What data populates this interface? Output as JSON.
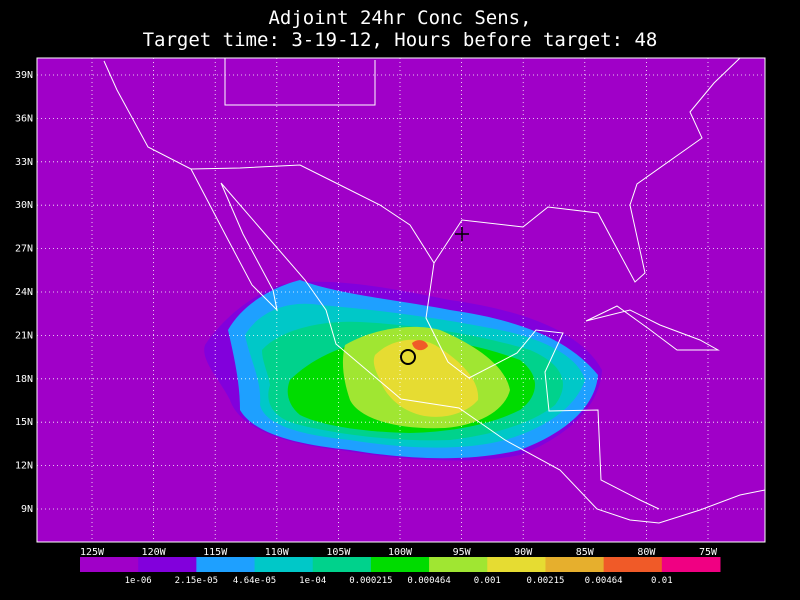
{
  "title": [
    "Adjoint 24hr Conc Sens,",
    "Target time: 3-19-12, Hours before target: 48"
  ],
  "map": {
    "lat_labels": [
      "39N",
      "36N",
      "33N",
      "30N",
      "27N",
      "24N",
      "21N",
      "18N",
      "15N",
      "12N",
      "9N"
    ],
    "lon_labels": [
      "125W",
      "120W",
      "115W",
      "110W",
      "105W",
      "100W",
      "95W",
      "90W",
      "85W",
      "80W",
      "75W"
    ]
  },
  "colorbar": {
    "labels": [
      "1e-06",
      "2.15e-05",
      "4.64e-05",
      "1e-04",
      "0.000215",
      "0.000464",
      "0.001",
      "0.00215",
      "0.00464",
      "0.01"
    ],
    "colors": [
      "#a000c8",
      "#8200dc",
      "#1ea0ff",
      "#00c8c8",
      "#00d28c",
      "#00dc00",
      "#a0e632",
      "#e6dc32",
      "#e6af2d",
      "#f05a28",
      "#f00082"
    ]
  }
}
